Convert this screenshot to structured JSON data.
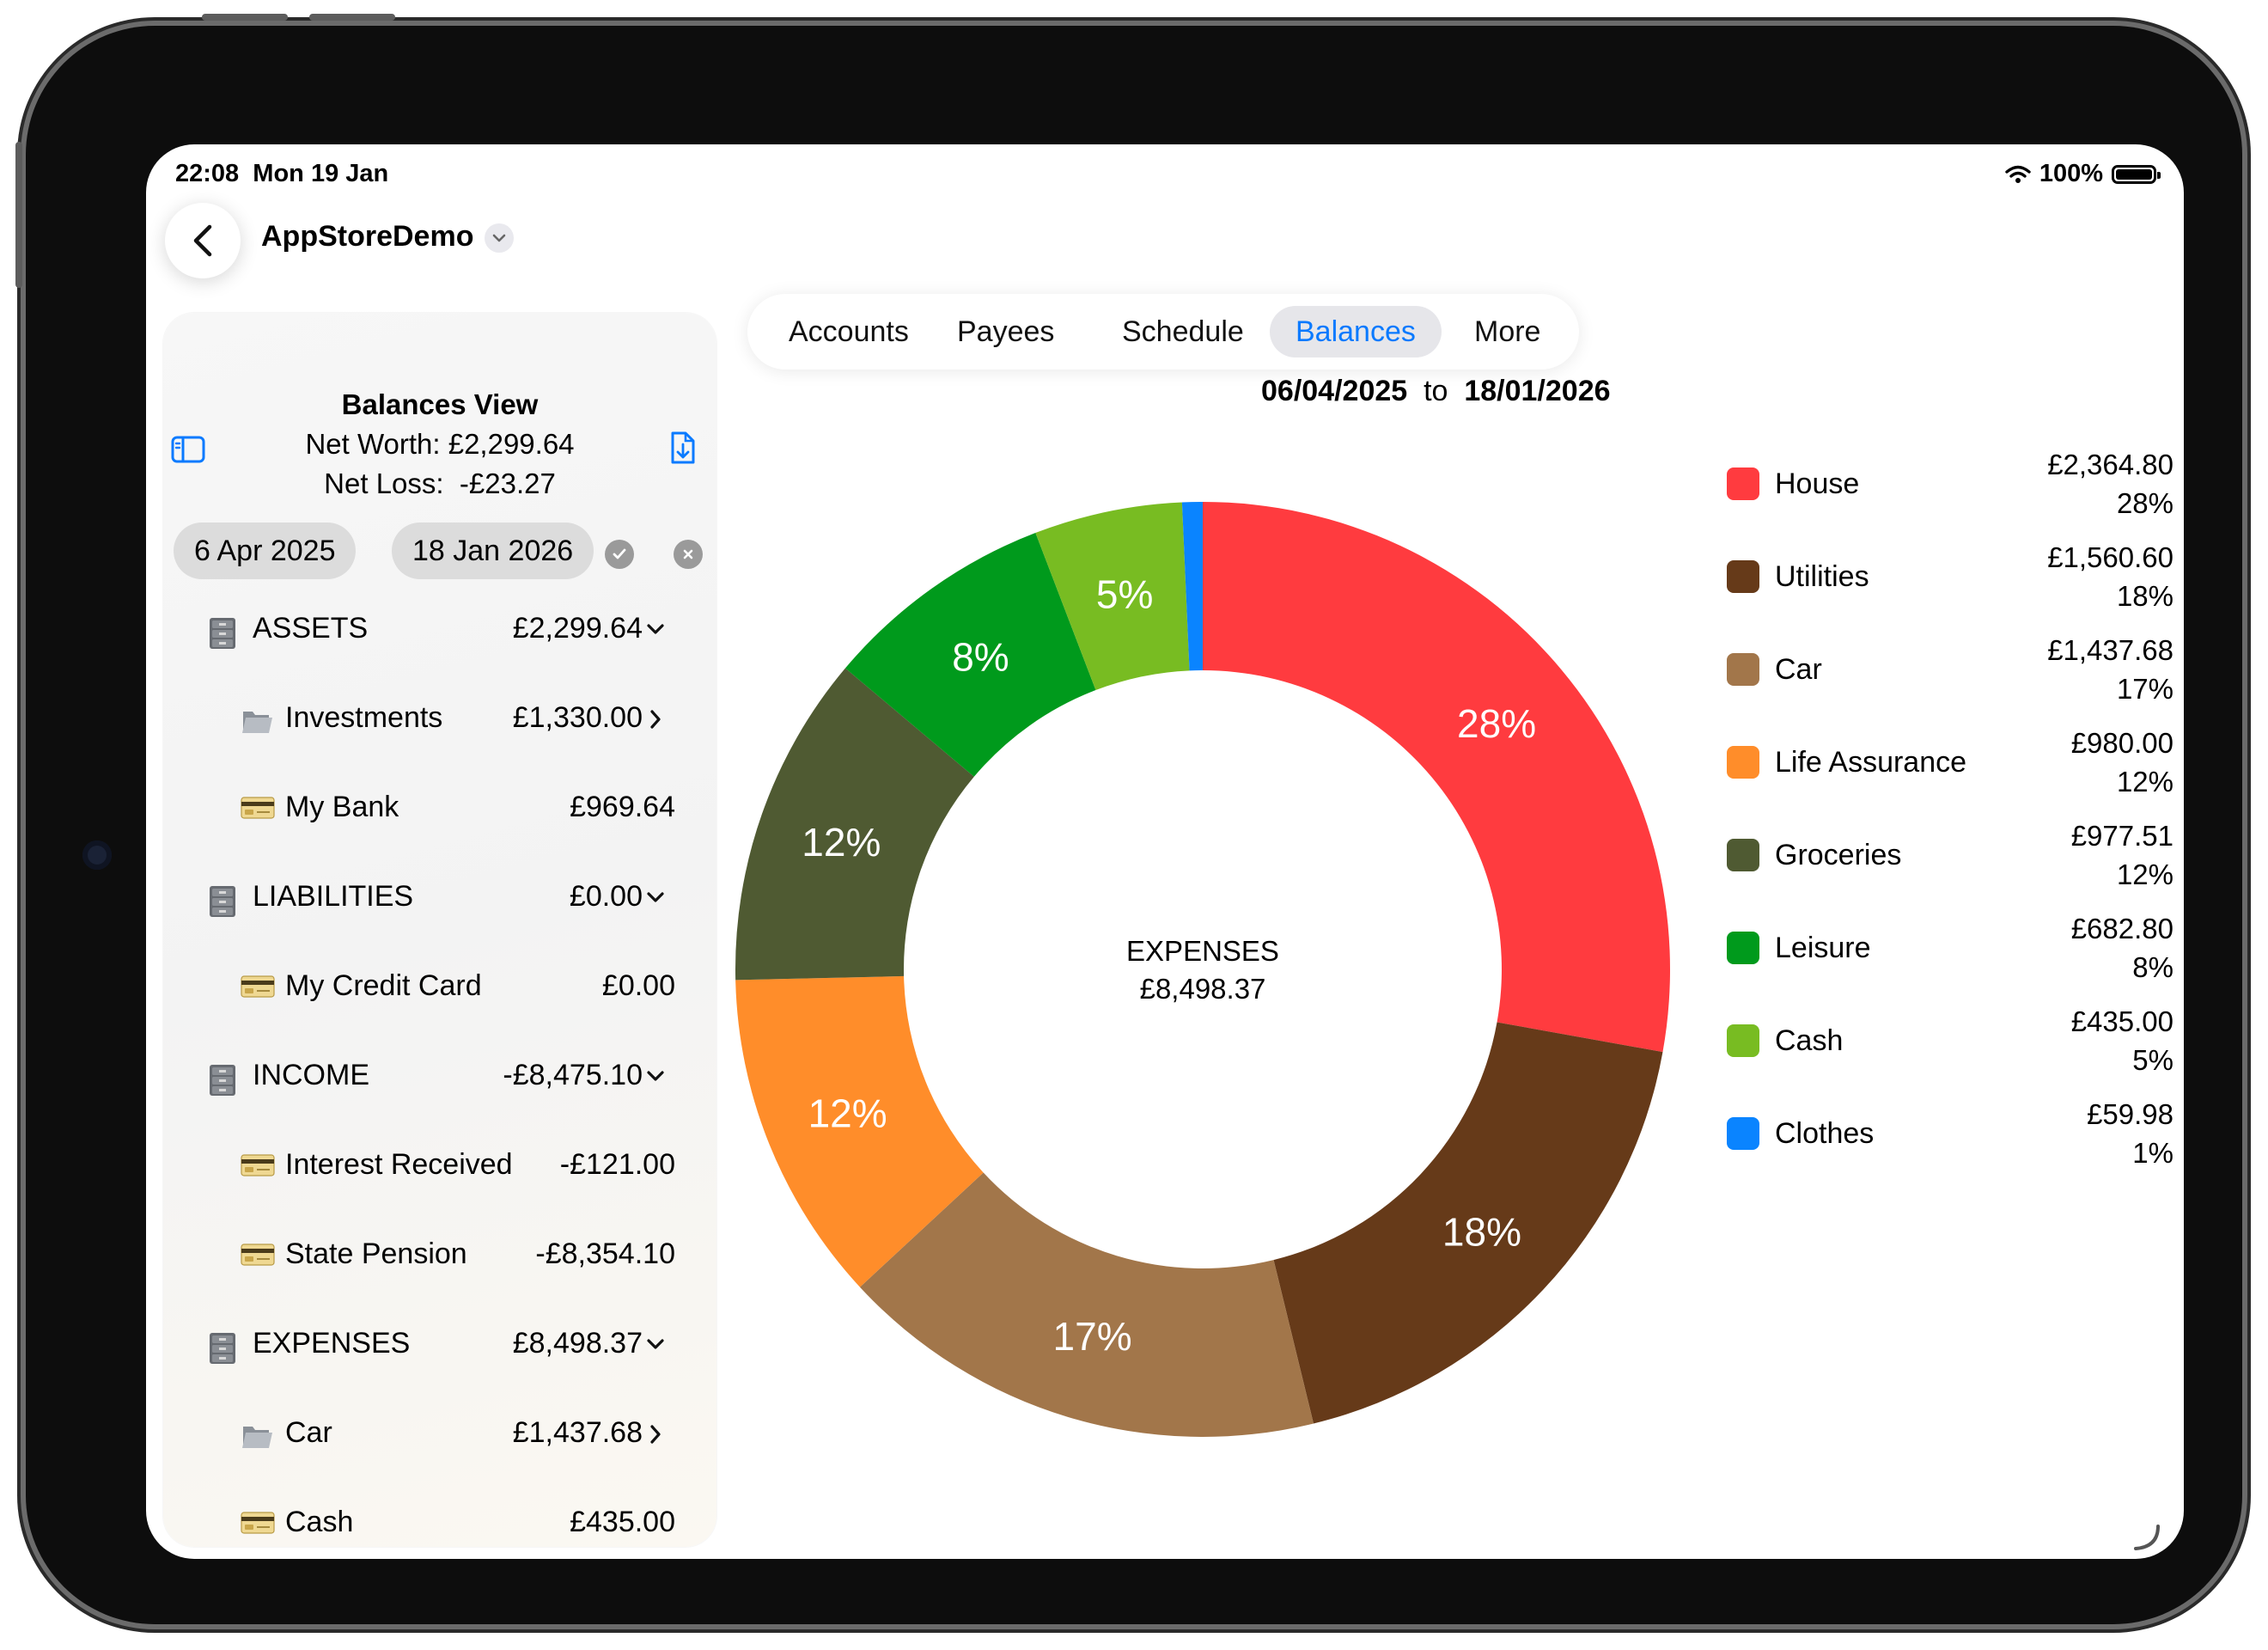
{
  "status": {
    "time": "22:08",
    "date": "Mon 19 Jan",
    "battery": "100%"
  },
  "header": {
    "title": "AppStoreDemo"
  },
  "tabs": [
    {
      "label": "Accounts",
      "active": false
    },
    {
      "label": "Payees",
      "active": false
    },
    {
      "label": "Schedule",
      "active": false
    },
    {
      "label": "Balances",
      "active": true
    },
    {
      "label": "More",
      "active": false
    }
  ],
  "date_range": {
    "from": "06/04/2025",
    "sep": "to",
    "to": "18/01/2026"
  },
  "sidebar": {
    "title": "Balances View",
    "net_worth": "Net Worth: £2,299.64",
    "net_loss": "Net Loss:  -£23.27",
    "start_date": "6 Apr 2025",
    "end_date": "18 Jan 2026",
    "rows": [
      {
        "icon": "cabinet",
        "label": "ASSETS",
        "amount": "£2,299.64",
        "chevron": "down"
      },
      {
        "icon": "folder",
        "label": "Investments",
        "amount": "£1,330.00",
        "chevron": "right"
      },
      {
        "icon": "card",
        "label": "My Bank",
        "amount": "£969.64",
        "chevron": ""
      },
      {
        "icon": "cabinet",
        "label": "LIABILITIES",
        "amount": "£0.00",
        "chevron": "down"
      },
      {
        "icon": "card",
        "label": "My Credit Card",
        "amount": "£0.00",
        "chevron": ""
      },
      {
        "icon": "cabinet",
        "label": "INCOME",
        "amount": "-£8,475.10",
        "chevron": "down"
      },
      {
        "icon": "card",
        "label": "Interest Received",
        "amount": "-£121.00",
        "chevron": ""
      },
      {
        "icon": "card",
        "label": "State Pension",
        "amount": "-£8,354.10",
        "chevron": ""
      },
      {
        "icon": "cabinet",
        "label": "EXPENSES",
        "amount": "£8,498.37",
        "chevron": "down"
      },
      {
        "icon": "folder",
        "label": "Car",
        "amount": "£1,437.68",
        "chevron": "right"
      },
      {
        "icon": "card",
        "label": "Cash",
        "amount": "£435.00",
        "chevron": ""
      }
    ]
  },
  "chart_data": {
    "type": "pie",
    "variant": "donut",
    "center_label": "EXPENSES",
    "center_value": "£8,498.37",
    "legend_position": "right",
    "slices": [
      {
        "name": "House",
        "value": 2364.8,
        "amount": "£2,364.80",
        "percent": "28%",
        "color": "#ff3b3f"
      },
      {
        "name": "Utilities",
        "value": 1560.6,
        "amount": "£1,560.60",
        "percent": "18%",
        "color": "#663a19"
      },
      {
        "name": "Car",
        "value": 1437.68,
        "amount": "£1,437.68",
        "percent": "17%",
        "color": "#a2764a"
      },
      {
        "name": "Life Assurance",
        "value": 980.0,
        "amount": "£980.00",
        "percent": "12%",
        "color": "#ff8d2a"
      },
      {
        "name": "Groceries",
        "value": 977.51,
        "amount": "£977.51",
        "percent": "12%",
        "color": "#4f5a32"
      },
      {
        "name": "Leisure",
        "value": 682.8,
        "amount": "£682.80",
        "percent": "8%",
        "color": "#009a1c"
      },
      {
        "name": "Cash",
        "value": 435.0,
        "amount": "£435.00",
        "percent": "5%",
        "color": "#78bc22"
      },
      {
        "name": "Clothes",
        "value": 59.98,
        "amount": "£59.98",
        "percent": "1%",
        "color": "#0a84ff"
      }
    ]
  },
  "colors": {
    "accent": "#0a7aff"
  }
}
